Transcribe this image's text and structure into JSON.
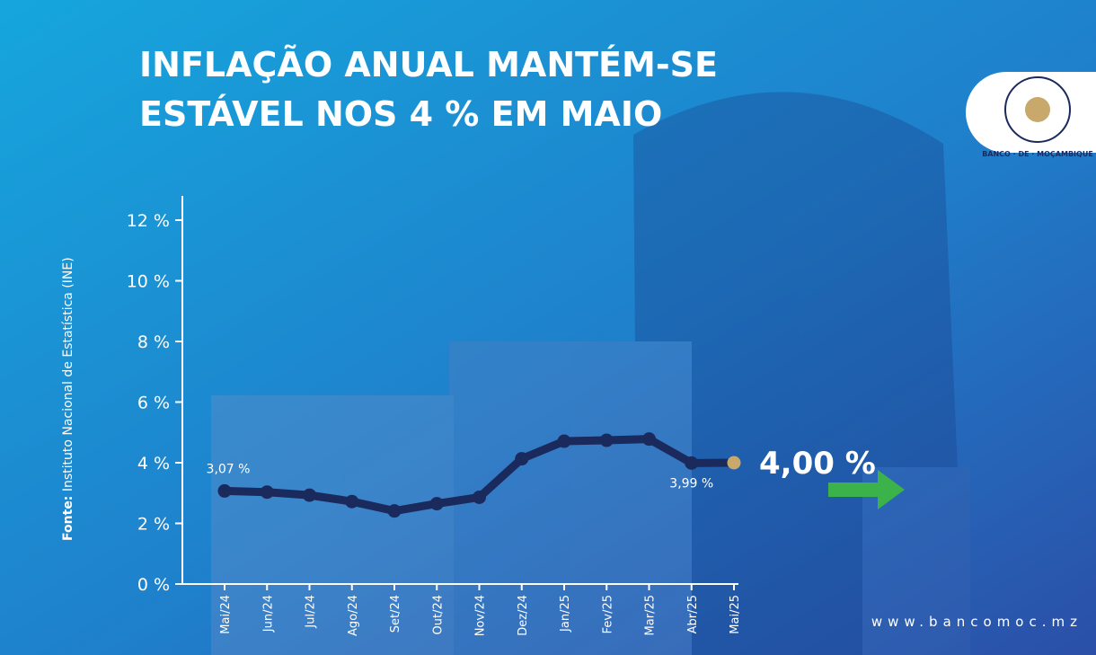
{
  "chart_data": {
    "type": "line",
    "title": [
      "INFLAÇÃO ANUAL MANTÉM-SE",
      "ESTÁVEL NOS 4 % EM MAIO"
    ],
    "source_label": "Fonte:",
    "source": "Instituto Nacional de Estatística (INE)",
    "logo_text": "BANCO · DE · MOÇAMBIQUE",
    "website": "www.bancomoc.mz",
    "categories": [
      "Mai/24",
      "Jun/24",
      "Jul/24",
      "Ago/24",
      "Set/24",
      "Out/24",
      "Nov/24",
      "Dez/24",
      "Jan/25",
      "Fev/25",
      "Mar/25",
      "Abr/25",
      "Mai/25"
    ],
    "values": [
      3.07,
      3.03,
      2.93,
      2.72,
      2.41,
      2.65,
      2.86,
      4.13,
      4.71,
      4.74,
      4.78,
      3.99,
      4.0
    ],
    "value_labels": [
      "3,07 %",
      null,
      null,
      null,
      null,
      null,
      null,
      null,
      null,
      null,
      null,
      "3,99 %",
      "4,00 %"
    ],
    "color": "#1b2a5c",
    "highlight_color": "#c9a86c",
    "ylim": [
      0,
      12.8
    ],
    "yticks": [
      {
        "value": 0,
        "label": "0 %"
      },
      {
        "value": 2,
        "label": "2 %"
      },
      {
        "value": 4,
        "label": "4 %"
      },
      {
        "value": 6,
        "label": "6 %"
      },
      {
        "value": 8,
        "label": "8 %"
      },
      {
        "value": 10,
        "label": "10 %"
      },
      {
        "value": 12,
        "label": "12 %"
      }
    ]
  }
}
